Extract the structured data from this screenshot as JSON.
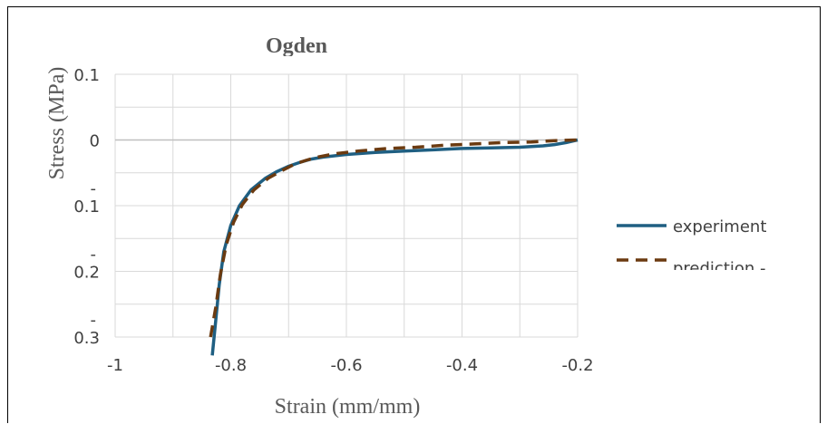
{
  "chart_data": {
    "type": "line",
    "title": "Ogden",
    "xlabel": "Strain (mm/mm)",
    "ylabel": "Stress (MPa)",
    "xlim": [
      -1,
      -0.2
    ],
    "ylim": [
      -0.3,
      0.1
    ],
    "x_ticks": [
      "-1",
      "-0.8",
      "-0.6",
      "-0.4",
      "-0.2"
    ],
    "y_ticks": [
      {
        "dash": "",
        "num": "0.1"
      },
      {
        "dash": "",
        "num": "0"
      },
      {
        "dash": "-",
        "num": "0.1"
      },
      {
        "dash": "-",
        "num": "0.2"
      },
      {
        "dash": "-",
        "num": "0.3"
      }
    ],
    "grid": true,
    "legend_position": "right",
    "series": [
      {
        "name": "experiment",
        "color": "#1f5f82",
        "style": "solid",
        "x": [
          -0.832,
          -0.826,
          -0.82,
          -0.812,
          -0.8,
          -0.785,
          -0.765,
          -0.74,
          -0.72,
          -0.7,
          -0.68,
          -0.66,
          -0.64,
          -0.6,
          -0.55,
          -0.5,
          -0.45,
          -0.4,
          -0.35,
          -0.3,
          -0.26,
          -0.24,
          -0.22,
          -0.2
        ],
        "y": [
          -0.328,
          -0.275,
          -0.22,
          -0.17,
          -0.13,
          -0.1,
          -0.076,
          -0.058,
          -0.048,
          -0.04,
          -0.034,
          -0.029,
          -0.026,
          -0.022,
          -0.019,
          -0.017,
          -0.015,
          -0.013,
          -0.012,
          -0.011,
          -0.009,
          -0.007,
          -0.004,
          0.0
        ]
      },
      {
        "name": "prediction -",
        "color": "#6b3a10",
        "style": "dashed",
        "x": [
          -0.835,
          -0.826,
          -0.818,
          -0.808,
          -0.795,
          -0.78,
          -0.76,
          -0.735,
          -0.71,
          -0.69,
          -0.67,
          -0.65,
          -0.62,
          -0.58,
          -0.53,
          -0.48,
          -0.43,
          -0.38,
          -0.33,
          -0.28,
          -0.24,
          -0.2
        ],
        "y": [
          -0.3,
          -0.255,
          -0.205,
          -0.16,
          -0.125,
          -0.098,
          -0.076,
          -0.058,
          -0.046,
          -0.037,
          -0.031,
          -0.026,
          -0.021,
          -0.017,
          -0.013,
          -0.011,
          -0.008,
          -0.006,
          -0.004,
          -0.003,
          -0.001,
          0.0
        ]
      }
    ]
  }
}
